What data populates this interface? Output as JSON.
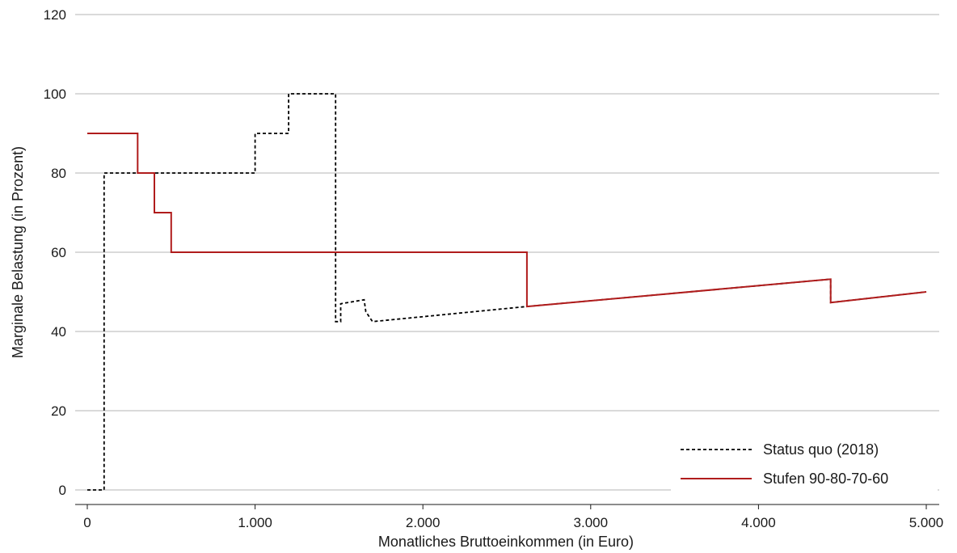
{
  "chart_data": {
    "type": "line",
    "title": "",
    "xlabel": "Monatliches Bruttoeinkommen (in Euro)",
    "ylabel": "Marginale Belastung (in Prozent)",
    "xlim": [
      0,
      5000
    ],
    "ylim": [
      0,
      120
    ],
    "x_ticks": [
      0,
      1000,
      2000,
      3000,
      4000,
      5000
    ],
    "x_tick_labels": [
      "0",
      "1.000",
      "2.000",
      "3.000",
      "4.000",
      "5.000"
    ],
    "y_ticks": [
      0,
      20,
      40,
      60,
      80,
      100,
      120
    ],
    "y_tick_labels": [
      "0",
      "20",
      "40",
      "60",
      "80",
      "100",
      "120"
    ],
    "grid": "horizontal",
    "legend_position": "bottom-right",
    "series": [
      {
        "name": "Status quo (2018)",
        "color": "#000000",
        "style": "dashed",
        "points": [
          [
            0,
            0
          ],
          [
            100,
            0
          ],
          [
            100,
            80
          ],
          [
            1000,
            80
          ],
          [
            1000,
            90
          ],
          [
            1200,
            90
          ],
          [
            1200,
            100
          ],
          [
            1480,
            100
          ],
          [
            1480,
            42.5
          ],
          [
            1510,
            42.5
          ],
          [
            1510,
            47
          ],
          [
            1650,
            48
          ],
          [
            1660,
            45
          ],
          [
            1700,
            42.5
          ],
          [
            2620,
            46.3
          ],
          [
            4430,
            53.2
          ],
          [
            4430,
            47.3
          ],
          [
            5000,
            50
          ]
        ]
      },
      {
        "name": "Stufen 90-80-70-60",
        "color": "#b01c1c",
        "style": "solid",
        "points": [
          [
            0,
            90
          ],
          [
            300,
            90
          ],
          [
            300,
            80
          ],
          [
            400,
            80
          ],
          [
            400,
            70
          ],
          [
            500,
            70
          ],
          [
            500,
            60
          ],
          [
            2620,
            60
          ],
          [
            2620,
            46.3
          ],
          [
            4430,
            53.2
          ],
          [
            4430,
            47.3
          ],
          [
            5000,
            50
          ]
        ]
      }
    ]
  }
}
